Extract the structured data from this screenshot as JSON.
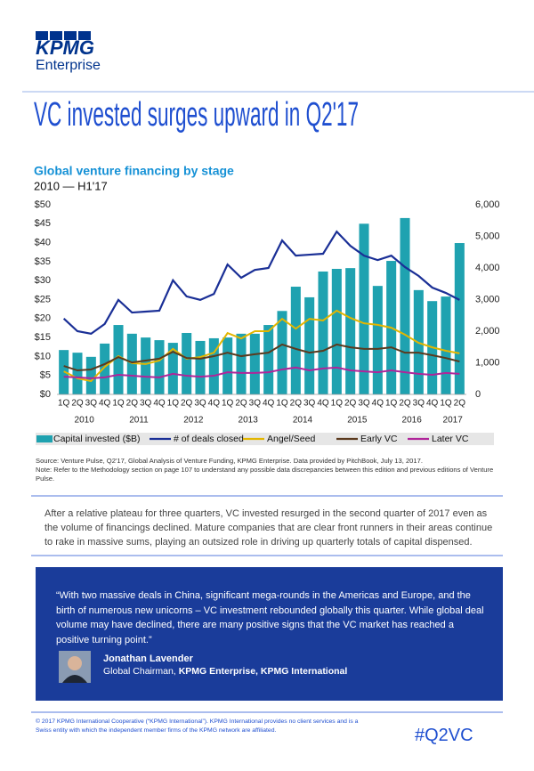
{
  "header": {
    "logo": "KPMG",
    "brand": "Enterprise",
    "title": "VC invested surges upward in Q2'17"
  },
  "chart_data": {
    "type": "bar",
    "title": "Global venture financing by stage",
    "subtitle": "2010 — H1'17",
    "categories": [
      "1Q",
      "2Q",
      "3Q",
      "4Q",
      "1Q",
      "2Q",
      "3Q",
      "4Q",
      "1Q",
      "2Q",
      "3Q",
      "4Q",
      "1Q",
      "2Q",
      "3Q",
      "4Q",
      "1Q",
      "2Q",
      "3Q",
      "4Q",
      "1Q",
      "2Q",
      "3Q",
      "4Q",
      "1Q",
      "2Q",
      "3Q",
      "4Q",
      "1Q",
      "2Q"
    ],
    "year_labels": [
      "2010",
      "2011",
      "2012",
      "2013",
      "2014",
      "2015",
      "2016",
      "2017"
    ],
    "series": [
      {
        "name": "Capital invested ($B)",
        "type": "bar",
        "color": "#1fa2b0",
        "values": [
          11.7,
          11,
          9.9,
          13.4,
          18.3,
          16,
          15,
          14.3,
          13.6,
          16.2,
          14.1,
          14.8,
          15,
          16,
          16,
          18.3,
          22,
          28.4,
          25.6,
          32.4,
          33.1,
          33.3,
          45,
          28.6,
          35.2,
          46.5,
          27.5,
          24.6,
          25.8,
          39.9
        ]
      },
      {
        "name": "# of deals closed",
        "type": "line",
        "axis": "y2",
        "color": "#1a2f96",
        "values": [
          2400,
          2000,
          1920,
          2230,
          2990,
          2590,
          2620,
          2650,
          3610,
          3100,
          2990,
          3180,
          4110,
          3690,
          3940,
          4000,
          4870,
          4390,
          4420,
          4450,
          5150,
          4700,
          4390,
          4250,
          4390,
          4030,
          3750,
          3380,
          3210,
          2990
        ]
      },
      {
        "name": "Angel/Seed",
        "type": "line",
        "axis": "y2",
        "color": "#e3b600",
        "values": [
          730,
          510,
          420,
          870,
          1210,
          990,
          960,
          1070,
          1440,
          1130,
          1180,
          1320,
          1940,
          1770,
          2000,
          2000,
          2390,
          2080,
          2390,
          2340,
          2650,
          2420,
          2250,
          2200,
          2110,
          1890,
          1630,
          1490,
          1380,
          1300
        ]
      },
      {
        "name": "Early VC",
        "type": "line",
        "axis": "y2",
        "color": "#5b3a1e",
        "values": [
          900,
          760,
          790,
          960,
          1180,
          1010,
          1070,
          1130,
          1350,
          1150,
          1130,
          1210,
          1320,
          1210,
          1270,
          1320,
          1580,
          1440,
          1320,
          1380,
          1580,
          1490,
          1440,
          1440,
          1490,
          1320,
          1320,
          1240,
          1150,
          1040
        ]
      },
      {
        "name": "Later VC",
        "type": "line",
        "axis": "y2",
        "color": "#b0259a",
        "values": [
          560,
          540,
          510,
          540,
          620,
          590,
          560,
          540,
          650,
          590,
          560,
          590,
          700,
          680,
          680,
          700,
          790,
          850,
          760,
          820,
          850,
          760,
          730,
          700,
          760,
          700,
          650,
          620,
          680,
          650
        ]
      }
    ],
    "ylim": [
      0,
      50
    ],
    "yticks": [
      {
        "value": 0,
        "label": "$0"
      },
      {
        "value": 5,
        "label": "$5"
      },
      {
        "value": 10,
        "label": "$10"
      },
      {
        "value": 15,
        "label": "$15"
      },
      {
        "value": 20,
        "label": "$20"
      },
      {
        "value": 25,
        "label": "$25"
      },
      {
        "value": 30,
        "label": "$30"
      },
      {
        "value": 35,
        "label": "$35"
      },
      {
        "value": 40,
        "label": "$40"
      },
      {
        "value": 45,
        "label": "$45"
      },
      {
        "value": 50,
        "label": "$50"
      }
    ],
    "y2lim": [
      0,
      6000
    ],
    "y2ticks": [
      0,
      {
        "value": 1000,
        "label": "1,000"
      },
      {
        "value": 2000,
        "label": "2,000"
      },
      {
        "value": 3000,
        "label": "3,000"
      },
      {
        "value": 4000,
        "label": "4,000"
      },
      {
        "value": 5000,
        "label": "5,000"
      },
      {
        "value": 6000,
        "label": "6,000"
      }
    ],
    "grid": false,
    "legend": "bottom"
  },
  "source": "Source: Venture Pulse, Q2'17, Global Analysis of Venture Funding, KPMG Enterprise. Data provided by PitchBook, July 13, 2017.",
  "note": "Note: Refer to the Methodology section on page 107 to understand any possible data discrepancies between this edition and previous editions of Venture Pulse.",
  "body": "After a relative plateau for three quarters, VC invested resurged in the second quarter of 2017 even as the volume of financings declined. Mature companies that are clear front runners in their areas continue to rake in massive sums, playing an outsized role in driving up quarterly totals of capital dispensed.",
  "quote": {
    "text": "“With two massive deals in China, significant mega-rounds in the Americas and Europe, and the birth of numerous new unicorns – VC investment rebounded globally this quarter. While global deal volume may have declined, there are many positive signs that the VC market has reached a positive turning point.”",
    "name": "Jonathan Lavender",
    "role": "Global Chairman,",
    "organization": "KPMG Enterprise, KPMG International"
  },
  "footer": {
    "copyright": "© 2017 KPMG International Cooperative (“KPMG International”). KPMG International provides no client services and is a Swiss entity with which the independent member firms of the KPMG network are affiliated.",
    "hashtag": "#Q2VC"
  }
}
